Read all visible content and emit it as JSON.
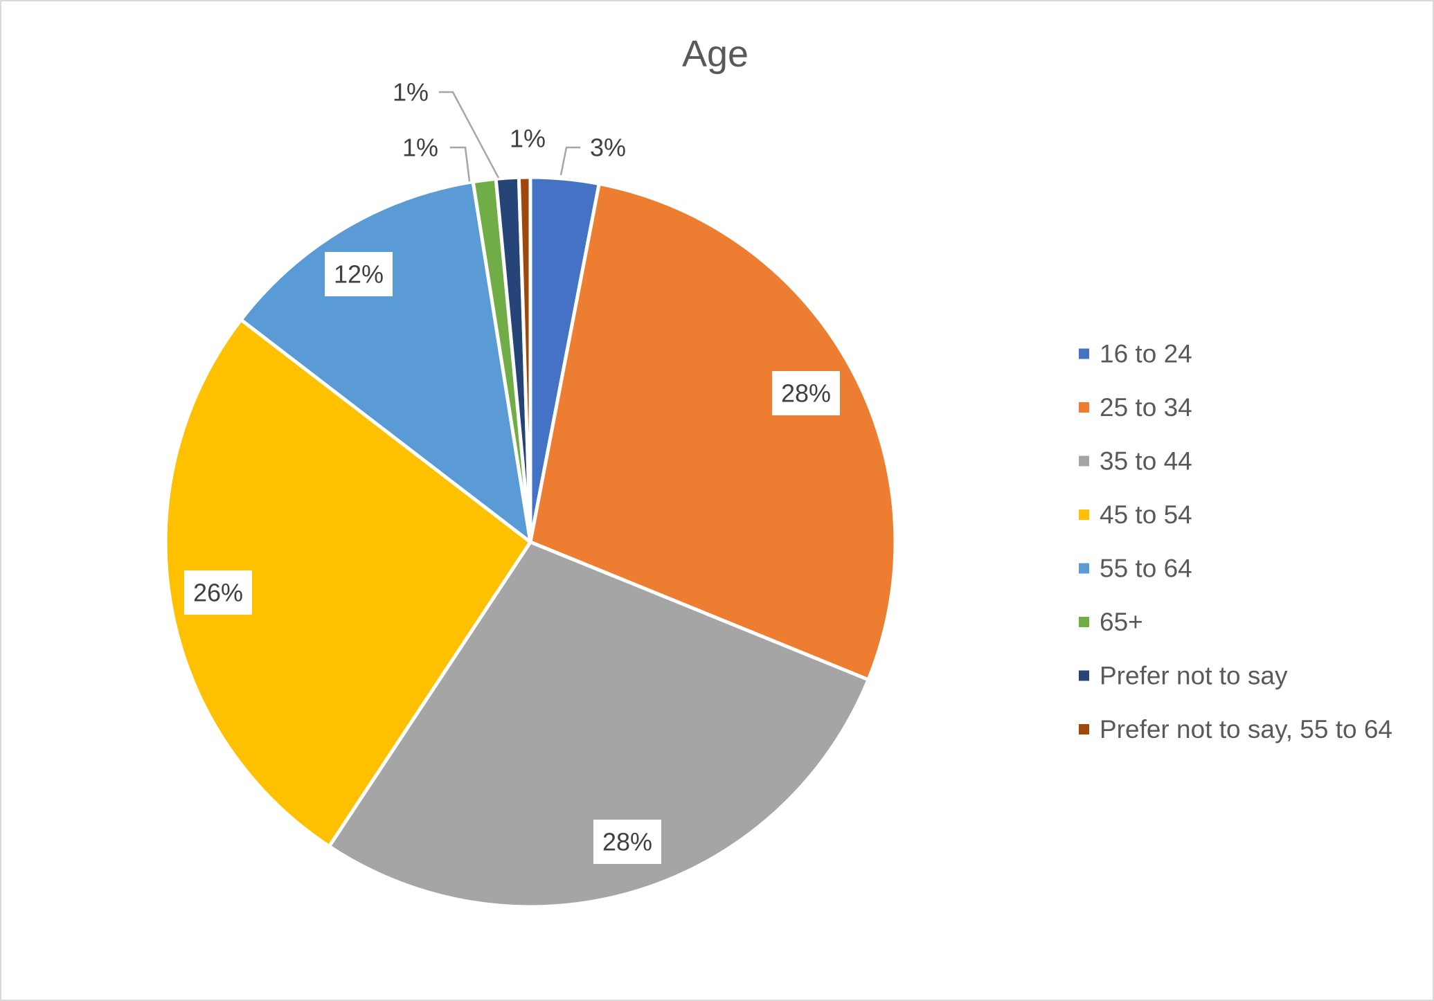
{
  "chart_data": {
    "type": "pie",
    "title": "Age",
    "legend_position": "right",
    "slices": [
      {
        "label": "16 to 24",
        "value": 3,
        "display": "3%",
        "color": "#4472C4"
      },
      {
        "label": "25 to 34",
        "value": 28,
        "display": "28%",
        "color": "#ED7D31"
      },
      {
        "label": "35 to 44",
        "value": 28,
        "display": "28%",
        "color": "#A5A5A5"
      },
      {
        "label": "45 to 54",
        "value": 26,
        "display": "26%",
        "color": "#FFC000"
      },
      {
        "label": "55 to 64",
        "value": 12,
        "display": "12%",
        "color": "#5B9BD5"
      },
      {
        "label": "65+",
        "value": 1,
        "display": "1%",
        "color": "#70AD47"
      },
      {
        "label": "Prefer not to say",
        "value": 1,
        "display": "1%",
        "color": "#264478"
      },
      {
        "label": "Prefer not to say, 55 to 64",
        "value": 0.5,
        "display": "1%",
        "color": "#9E480E"
      }
    ]
  }
}
